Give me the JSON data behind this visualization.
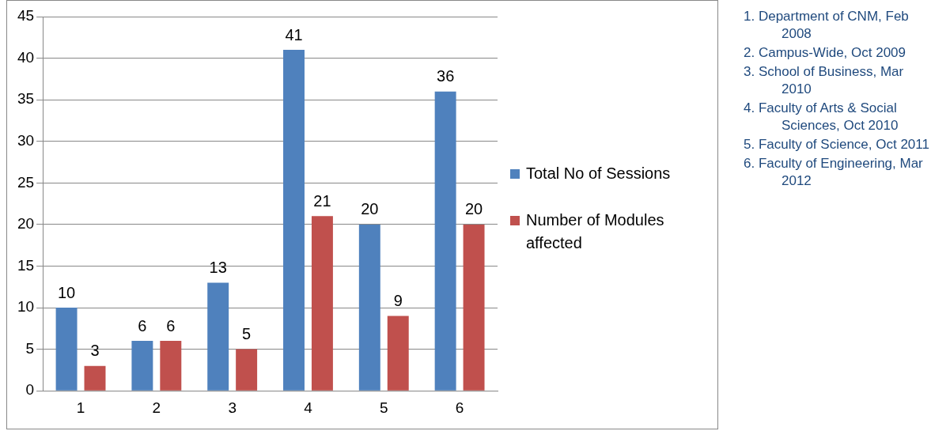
{
  "chart_data": {
    "type": "bar",
    "categories": [
      "1",
      "2",
      "3",
      "4",
      "5",
      "6"
    ],
    "series": [
      {
        "name": "Total No of Sessions",
        "color": "#4f81bd",
        "values": [
          10,
          6,
          13,
          41,
          20,
          36
        ]
      },
      {
        "name": "Number of Modules affected",
        "color": "#c0504d",
        "values": [
          3,
          6,
          5,
          21,
          9,
          20
        ]
      }
    ],
    "ylim": [
      0,
      45
    ],
    "yticks": [
      0,
      5,
      10,
      15,
      20,
      25,
      30,
      35,
      40,
      45
    ],
    "grid": "y",
    "legend": "right",
    "data_labels": true,
    "annotations": [
      "1. Department of CNM, Feb 2008",
      "2. Campus-Wide, Oct 2009",
      "3. School of Business, Mar 2010",
      "4. Faculty of Arts & Social Sciences, Oct 2010",
      "5. Faculty of Science, Oct 2011",
      "6. Faculty of Engineering, Mar 2012"
    ]
  }
}
